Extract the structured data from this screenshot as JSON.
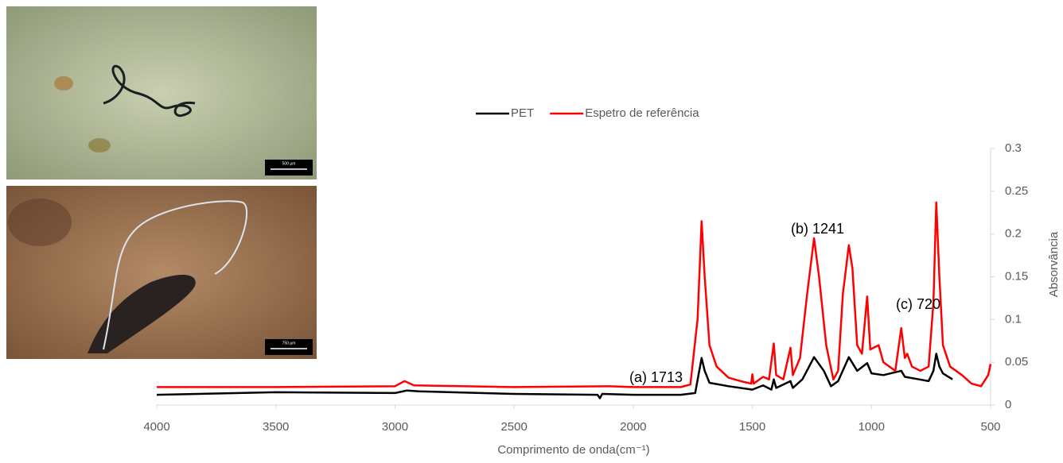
{
  "images": [
    {
      "scale_label": "500 µm"
    },
    {
      "scale_label": "750 µm"
    }
  ],
  "chart_data": {
    "type": "line",
    "x_label": "Comprimento de onda(cm⁻¹)",
    "y_label": "Absorvância",
    "xlim": [
      4000,
      500
    ],
    "xticks": [
      4000,
      3500,
      3000,
      2500,
      2000,
      1500,
      1000,
      500
    ],
    "ylim": [
      0,
      0.3
    ],
    "yticks": [
      0,
      0.05,
      0.1,
      0.15,
      0.2,
      0.25,
      0.3
    ],
    "grid": false,
    "legend": "top",
    "annotations": [
      "(a) 1713",
      "(b) 1241",
      "(c) 720"
    ],
    "series": [
      {
        "name": "PET",
        "color": "#000000",
        "x": [
          4000,
          3500,
          3000,
          2950,
          2900,
          2500,
          2150,
          2140,
          2130,
          2000,
          1800,
          1740,
          1713,
          1700,
          1680,
          1600,
          1500,
          1455,
          1420,
          1410,
          1400,
          1340,
          1330,
          1290,
          1241,
          1200,
          1170,
          1140,
          1095,
          1060,
          1018,
          1000,
          950,
          875,
          860,
          800,
          760,
          740,
          728,
          715,
          700,
          660
        ],
        "values": [
          0.012,
          0.015,
          0.014,
          0.017,
          0.016,
          0.013,
          0.012,
          0.008,
          0.013,
          0.012,
          0.012,
          0.014,
          0.055,
          0.04,
          0.026,
          0.022,
          0.018,
          0.023,
          0.018,
          0.03,
          0.02,
          0.028,
          0.02,
          0.03,
          0.056,
          0.04,
          0.022,
          0.028,
          0.056,
          0.04,
          0.049,
          0.037,
          0.035,
          0.04,
          0.033,
          0.03,
          0.028,
          0.04,
          0.06,
          0.045,
          0.037,
          0.03
        ]
      },
      {
        "name": "Espetro de referência",
        "color": "#ff0000",
        "x": [
          4000,
          3500,
          3000,
          2960,
          2920,
          2500,
          2100,
          2000,
          1800,
          1760,
          1730,
          1713,
          1700,
          1680,
          1650,
          1600,
          1550,
          1505,
          1500,
          1495,
          1455,
          1430,
          1410,
          1400,
          1370,
          1340,
          1330,
          1300,
          1270,
          1241,
          1220,
          1190,
          1160,
          1140,
          1120,
          1095,
          1080,
          1060,
          1040,
          1018,
          1005,
          970,
          950,
          900,
          875,
          860,
          850,
          830,
          795,
          760,
          740,
          728,
          715,
          700,
          670,
          620,
          580,
          540,
          510,
          500
        ],
        "values": [
          0.021,
          0.021,
          0.022,
          0.028,
          0.023,
          0.021,
          0.022,
          0.021,
          0.021,
          0.024,
          0.1,
          0.215,
          0.15,
          0.07,
          0.045,
          0.032,
          0.028,
          0.025,
          0.036,
          0.025,
          0.033,
          0.03,
          0.072,
          0.035,
          0.03,
          0.067,
          0.035,
          0.055,
          0.13,
          0.195,
          0.15,
          0.07,
          0.03,
          0.04,
          0.13,
          0.187,
          0.16,
          0.07,
          0.06,
          0.127,
          0.065,
          0.07,
          0.05,
          0.04,
          0.09,
          0.055,
          0.06,
          0.045,
          0.04,
          0.045,
          0.12,
          0.237,
          0.15,
          0.07,
          0.045,
          0.035,
          0.025,
          0.022,
          0.035,
          0.048
        ]
      }
    ]
  }
}
